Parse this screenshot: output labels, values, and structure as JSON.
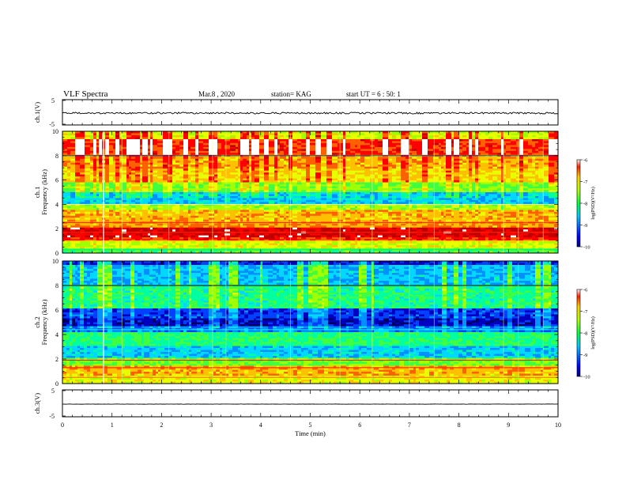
{
  "header": {
    "title": "VLF Spectra",
    "date": "Mar.8 , 2020",
    "station": "station= KAG",
    "start": "start UT = 6 : 50: 1"
  },
  "chart_data": [
    {
      "type": "line",
      "name": "ch1-waveform",
      "ylabel": "ch.1(V)",
      "ylim": [
        -5,
        5
      ],
      "yticks": [
        "5",
        "-5"
      ],
      "xlim": [
        0,
        10
      ]
    },
    {
      "type": "heatmap",
      "name": "ch1-spectrogram",
      "ylabel_lines": [
        "ch.1",
        "Frequency (kHz)"
      ],
      "ylim": [
        0,
        10
      ],
      "yticks": [
        "0",
        "2",
        "4",
        "6",
        "8",
        "10"
      ],
      "xlim": [
        0,
        10
      ],
      "colorbar": {
        "label": "log(PSD)(V²/Hz)",
        "ticks": [
          "-6",
          "-7",
          "-8",
          "-9",
          "-10"
        ],
        "range": [
          -10,
          -6
        ]
      }
    },
    {
      "type": "heatmap",
      "name": "ch2-spectrogram",
      "ylabel_lines": [
        "ch.2",
        "Frequency (kHz)"
      ],
      "ylim": [
        0,
        10
      ],
      "yticks": [
        "0",
        "2",
        "4",
        "6",
        "8",
        "10"
      ],
      "xlim": [
        0,
        10
      ],
      "colorbar": {
        "label": "log(PSD)(V²/Hz)",
        "ticks": [
          "-6",
          "-7",
          "-8",
          "-9",
          "-10"
        ],
        "range": [
          -10,
          -6
        ]
      }
    },
    {
      "type": "line",
      "name": "ch3-waveform",
      "ylabel": "ch.3(V)",
      "ylim": [
        -5,
        5
      ],
      "yticks": [
        "5",
        "-5"
      ],
      "xlim": [
        0,
        10
      ],
      "xlabel": "Time (min)",
      "xticks": [
        "0",
        "1",
        "2",
        "3",
        "4",
        "5",
        "6",
        "7",
        "8",
        "9",
        "10"
      ]
    }
  ]
}
